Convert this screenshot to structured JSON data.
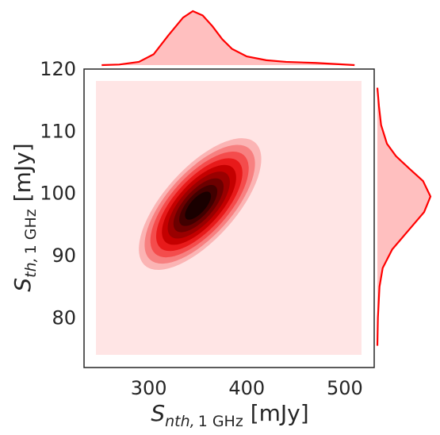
{
  "chart_data": {
    "type": "kde-jointplot",
    "color": "#ff0000",
    "fill_color": "#ffbfbf",
    "background_fill": "#ffe5e5",
    "density_colors": [
      "#ffe5e5",
      "#fbb4b4",
      "#f78080",
      "#f44c4c",
      "#e81a1a",
      "#c40000",
      "#9a0000",
      "#6d0000",
      "#420000",
      "#1a0000"
    ],
    "xlabel": {
      "symbol": "S",
      "subscript": "nth,",
      "subscript_rm": "1 GHz",
      "unit": " [mJy]"
    },
    "ylabel": {
      "symbol": "S",
      "subscript": "th,",
      "subscript_rm": "1 GHz",
      "unit": " [mJy]"
    },
    "xlim": [
      234,
      530
    ],
    "ylim": [
      72,
      120
    ],
    "xticks": [
      300,
      400,
      500
    ],
    "yticks": [
      80,
      90,
      100,
      110,
      120
    ],
    "density_center": {
      "x": 350,
      "y": 98
    },
    "density_spread": {
      "x_sd": 28,
      "y_sd": 5.5,
      "correlation": 0.8
    },
    "marginal_x": {
      "x": [
        252,
        270,
        290,
        305,
        320,
        335,
        345,
        355,
        365,
        375,
        385,
        400,
        420,
        440,
        470,
        510
      ],
      "density": [
        0.0,
        0.01,
        0.06,
        0.2,
        0.55,
        0.88,
        1.0,
        0.92,
        0.72,
        0.48,
        0.3,
        0.16,
        0.09,
        0.06,
        0.04,
        0.0
      ]
    },
    "marginal_y": {
      "y": [
        75.5,
        80,
        85,
        88,
        91,
        94,
        97,
        99.5,
        102,
        104,
        106,
        108,
        111,
        114,
        117
      ],
      "density": [
        0.0,
        0.01,
        0.04,
        0.1,
        0.28,
        0.58,
        0.88,
        1.0,
        0.86,
        0.6,
        0.35,
        0.18,
        0.07,
        0.03,
        0.0
      ]
    }
  }
}
